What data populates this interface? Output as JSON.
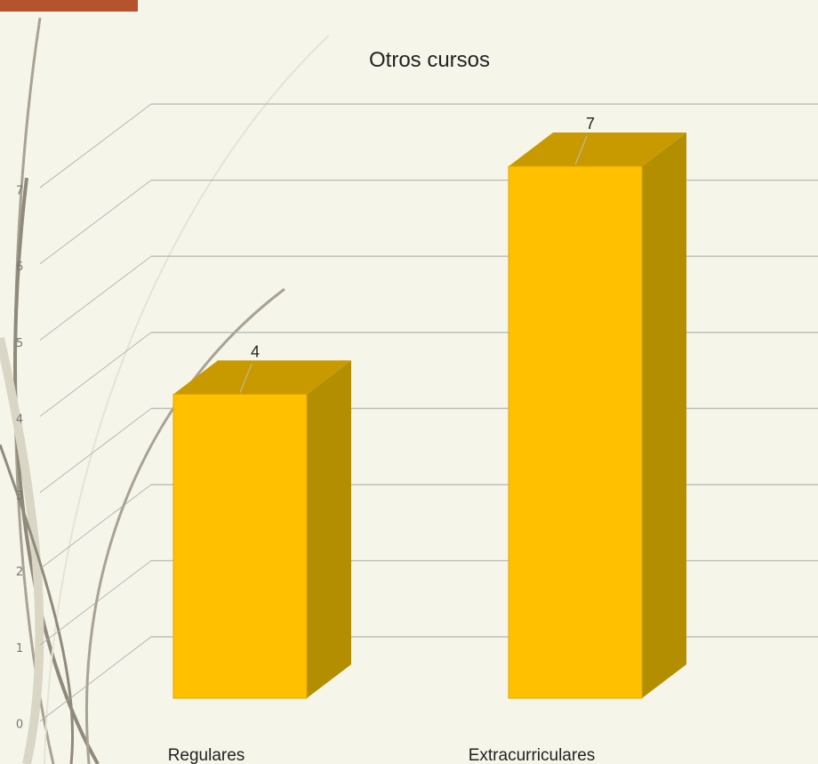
{
  "chart_data": {
    "type": "bar",
    "title": "Otros cursos",
    "categories": [
      "Regulares",
      "Extracurriculares"
    ],
    "values": [
      4,
      7
    ],
    "color": "#ffc000",
    "ylim": [
      0,
      7
    ],
    "yticks": [
      0,
      1,
      2,
      3,
      4,
      5,
      6,
      7
    ],
    "grid": true
  }
}
